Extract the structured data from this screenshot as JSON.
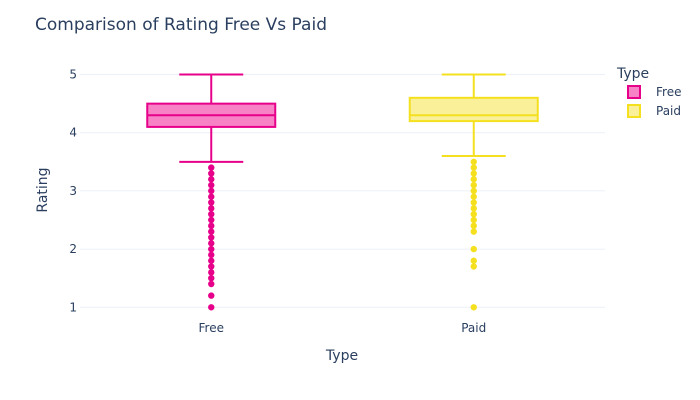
{
  "chart_data": {
    "type": "box",
    "title": "Comparison of Rating Free Vs Paid",
    "xlabel": "Type",
    "ylabel": "Rating",
    "categories": [
      "Free",
      "Paid"
    ],
    "ylim": [
      0.85,
      5.25
    ],
    "yticks": [
      1,
      2,
      3,
      4,
      5
    ],
    "grid": true,
    "legend": {
      "title": "Type",
      "position": "top-right"
    },
    "series": [
      {
        "name": "Free",
        "category": "Free",
        "color": "#e7008a",
        "fill": "#f783c6",
        "min": 3.5,
        "q1": 4.1,
        "median": 4.3,
        "q3": 4.5,
        "max": 5.0,
        "outliers": [
          3.4,
          3.3,
          3.2,
          3.1,
          3.0,
          2.9,
          2.8,
          2.7,
          2.6,
          2.5,
          2.4,
          2.3,
          2.2,
          2.1,
          2.0,
          1.9,
          1.8,
          1.7,
          1.6,
          1.5,
          1.4,
          1.2,
          1.0
        ]
      },
      {
        "name": "Paid",
        "category": "Paid",
        "color": "#f5e020",
        "fill": "#fbf09a",
        "min": 3.6,
        "q1": 4.2,
        "median": 4.3,
        "q3": 4.6,
        "max": 5.0,
        "outliers": [
          3.5,
          3.4,
          3.3,
          3.2,
          3.1,
          3.0,
          2.9,
          2.8,
          2.7,
          2.6,
          2.5,
          2.4,
          2.3,
          2.0,
          1.8,
          1.7,
          1.0
        ]
      }
    ]
  }
}
